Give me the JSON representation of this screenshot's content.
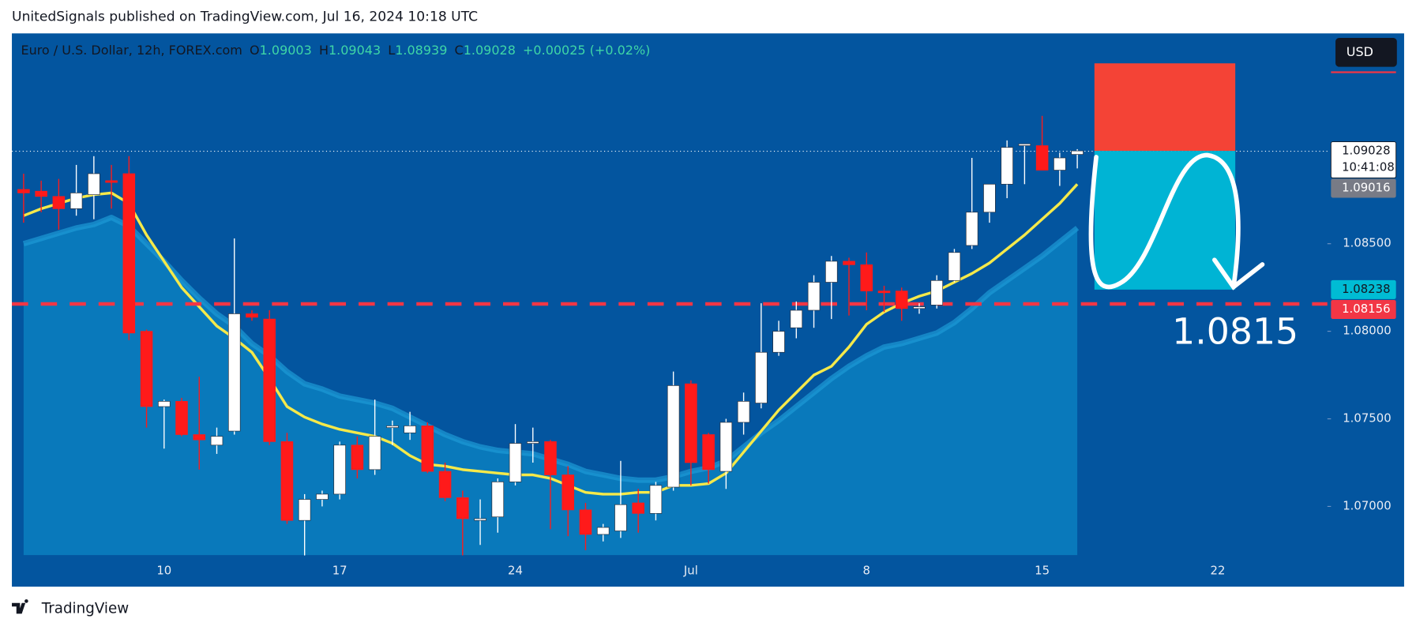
{
  "header": "UnitedSignals published on TradingView.com, Jul 16, 2024 10:18 UTC",
  "footer": "TradingView",
  "chart_data": {
    "type": "candlestick",
    "title": "Euro / U.S. Dollar, 12h, FOREX.com",
    "ohlc_legend": [
      {
        "key": "O",
        "value": "1.09003"
      },
      {
        "key": "H",
        "value": "1.09043"
      },
      {
        "key": "L",
        "value": "1.08939"
      },
      {
        "key": "C",
        "value": "1.09028"
      }
    ],
    "change": "+0.00025 (+0.02%)",
    "currency": "USD",
    "categories": [
      null,
      null,
      null,
      null,
      null,
      null,
      null,
      null,
      "10",
      null,
      null,
      null,
      null,
      null,
      null,
      null,
      null,
      null,
      "17",
      null,
      null,
      null,
      null,
      null,
      null,
      null,
      null,
      null,
      "24",
      null,
      null,
      null,
      null,
      null,
      null,
      null,
      null,
      null,
      "Jul",
      null,
      null,
      null,
      null,
      null,
      null,
      null,
      null,
      null,
      "8",
      null,
      null,
      null,
      null,
      null,
      null,
      null,
      null,
      null,
      "15",
      null,
      null,
      null,
      null,
      null,
      null,
      null,
      null,
      null,
      "22",
      null,
      null,
      null,
      null,
      null,
      null
    ],
    "open": [
      1.0881,
      1.088,
      1.0877,
      1.087,
      1.0878,
      1.0886,
      1.089,
      1.08,
      1.0757,
      1.076,
      1.0741,
      1.0735,
      1.0743,
      1.081,
      1.0807,
      1.0737,
      1.0692,
      1.0704,
      1.0707,
      1.0735,
      1.0721,
      1.0745,
      1.0742,
      1.0746,
      1.072,
      1.0705,
      1.0692,
      1.0694,
      1.0714,
      1.0736,
      1.0737,
      1.0718,
      1.0698,
      1.0684,
      1.0686,
      1.0702,
      1.0696,
      1.0711,
      1.077,
      1.0741,
      1.072,
      1.0748,
      1.0759,
      1.0788,
      1.0802,
      1.0812,
      1.0828,
      1.084,
      1.0838,
      1.0823,
      1.0823,
      1.0813,
      1.0815,
      1.0829,
      1.0849,
      1.0868,
      1.0884,
      1.0906,
      1.0906,
      1.0892,
      1.0901,
      null,
      null,
      null,
      null,
      null,
      null,
      null,
      null,
      null,
      null,
      null,
      null,
      null,
      null
    ],
    "high": [
      1.089,
      1.0886,
      1.0887,
      1.0895,
      1.09,
      1.0895,
      1.09,
      1.0801,
      1.0761,
      1.0762,
      1.0774,
      1.0745,
      1.0853,
      1.0812,
      1.0812,
      1.0742,
      1.0707,
      1.0709,
      1.0737,
      1.074,
      1.0761,
      1.0749,
      1.0754,
      1.0748,
      1.0725,
      1.0709,
      1.0704,
      1.0716,
      1.0747,
      1.0745,
      1.0738,
      1.0723,
      1.0702,
      1.069,
      1.0726,
      1.071,
      1.0714,
      1.0777,
      1.0772,
      1.0742,
      1.075,
      1.0765,
      1.0816,
      1.0806,
      1.0817,
      1.0832,
      1.0843,
      1.0842,
      1.0845,
      1.0826,
      1.0825,
      1.0816,
      1.0832,
      1.0847,
      1.0899,
      1.0884,
      1.0909,
      1.0907,
      1.0923,
      1.0902,
      1.0904,
      null,
      null,
      null,
      null,
      null,
      null,
      null,
      null,
      null,
      null,
      null,
      null,
      null,
      null
    ],
    "low": [
      1.0862,
      1.0868,
      1.0858,
      1.0866,
      1.0864,
      1.087,
      1.0795,
      1.0745,
      1.0733,
      1.074,
      1.0721,
      1.073,
      1.0741,
      1.0806,
      1.0735,
      1.069,
      1.0672,
      1.07,
      1.0704,
      1.0716,
      1.0718,
      1.0735,
      1.0738,
      1.0719,
      1.0703,
      1.0672,
      1.0678,
      1.0685,
      1.0712,
      1.0725,
      1.0687,
      1.0683,
      1.0675,
      1.068,
      1.0682,
      1.0685,
      1.0692,
      1.0709,
      1.0712,
      1.0713,
      1.071,
      1.0741,
      1.0756,
      1.0786,
      1.0796,
      1.0802,
      1.0807,
      1.0809,
      1.0812,
      1.0811,
      1.0806,
      1.081,
      1.0813,
      1.0828,
      1.0847,
      1.0862,
      1.0876,
      1.0884,
      1.0892,
      1.0883,
      1.0893,
      null,
      null,
      null,
      null,
      null,
      null,
      null,
      null,
      null,
      null,
      null,
      null,
      null,
      null
    ],
    "close": [
      1.0879,
      1.0877,
      1.087,
      1.0879,
      1.089,
      1.0885,
      1.0799,
      1.0757,
      1.076,
      1.0741,
      1.0738,
      1.074,
      1.081,
      1.0808,
      1.0737,
      1.0692,
      1.0704,
      1.0707,
      1.0735,
      1.0721,
      1.074,
      1.0746,
      1.0746,
      1.072,
      1.0705,
      1.0693,
      1.0693,
      1.0714,
      1.0736,
      1.0737,
      1.0718,
      1.0698,
      1.0684,
      1.0688,
      1.0701,
      1.0696,
      1.0712,
      1.0769,
      1.0725,
      1.0721,
      1.0748,
      1.076,
      1.0788,
      1.08,
      1.0812,
      1.0828,
      1.084,
      1.0838,
      1.0823,
      1.0822,
      1.0813,
      1.0814,
      1.0829,
      1.0845,
      1.0868,
      1.0884,
      1.0905,
      1.0907,
      1.0892,
      1.0899,
      1.0903,
      null,
      null,
      null,
      null,
      null,
      null,
      null,
      null,
      null,
      null,
      null,
      null,
      null,
      null
    ],
    "up_color": "#ffffff",
    "down_color": "#ff1a1a",
    "lines": [
      {
        "color": "#1e9ad6",
        "fill": "#0a80c0",
        "values": [
          1.085,
          1.0853,
          1.0856,
          1.0859,
          1.0861,
          1.0865,
          1.086,
          1.085,
          1.084,
          1.0829,
          1.0819,
          1.081,
          1.0803,
          1.0793,
          1.0786,
          1.0777,
          1.077,
          1.0767,
          1.0763,
          1.0761,
          1.0759,
          1.0756,
          1.0751,
          1.0746,
          1.0741,
          1.0737,
          1.0734,
          1.0732,
          1.0731,
          1.073,
          1.0727,
          1.0724,
          1.072,
          1.0718,
          1.0716,
          1.0715,
          1.0715,
          1.0717,
          1.072,
          1.0722,
          1.0726,
          1.0734,
          1.0742,
          1.0749,
          1.0757,
          1.0765,
          1.0773,
          1.078,
          1.0786,
          1.0791,
          1.0793,
          1.0796,
          1.0799,
          1.0805,
          1.0813,
          1.0822,
          1.0829,
          1.0836,
          1.0843,
          1.0851,
          1.0859,
          null,
          null,
          null,
          null,
          null,
          null,
          null,
          null,
          null,
          null,
          null,
          null,
          null,
          null
        ]
      },
      {
        "color": "#f5e94a",
        "values": [
          1.0866,
          1.087,
          1.0873,
          1.0876,
          1.0878,
          1.0879,
          1.0873,
          1.0855,
          1.084,
          1.0825,
          1.0814,
          1.0803,
          1.0796,
          1.0788,
          1.0773,
          1.0757,
          1.0751,
          1.0747,
          1.0744,
          1.0742,
          1.074,
          1.0736,
          1.0729,
          1.0724,
          1.0723,
          1.0721,
          1.072,
          1.0719,
          1.0718,
          1.0718,
          1.0716,
          1.0712,
          1.0708,
          1.0707,
          1.0707,
          1.0708,
          1.0708,
          1.0712,
          1.0712,
          1.0713,
          1.0719,
          1.0731,
          1.0743,
          1.0755,
          1.0765,
          1.0775,
          1.078,
          1.0791,
          1.0804,
          1.0811,
          1.0816,
          1.082,
          1.0823,
          1.0828,
          1.0833,
          1.0839,
          1.0847,
          1.0855,
          1.0864,
          1.0873,
          1.0884,
          null,
          null,
          null,
          null,
          null,
          null,
          null,
          null,
          null,
          null,
          null,
          null,
          null,
          null
        ]
      }
    ],
    "ylim": [
      1.06722,
      1.09701
    ],
    "yticks": [
      {
        "value": 1.07,
        "label": "1.07000"
      },
      {
        "value": 1.075,
        "label": "1.07500"
      },
      {
        "value": 1.08,
        "label": "1.08000"
      },
      {
        "value": 1.085,
        "label": "1.08500"
      }
    ],
    "price_labels": [
      {
        "value": 1.09028,
        "label": "1.09028",
        "time": "10:41:08",
        "color": "#ffffff",
        "line": "dotted"
      },
      {
        "value": 1.09016,
        "label": "1.09016",
        "color": "#787b86"
      },
      {
        "value": 1.08238,
        "label": "1.08238",
        "color": "#00bcd4"
      },
      {
        "value": 1.08156,
        "label": "1.08156",
        "color": "#f23645",
        "line": "dashed"
      }
    ],
    "position": {
      "stop": 1.0953,
      "entry": 1.0903,
      "target": 1.08238,
      "stop_color": "#f44336",
      "target_color": "#00b4d4"
    },
    "annotation": "1.0815"
  }
}
